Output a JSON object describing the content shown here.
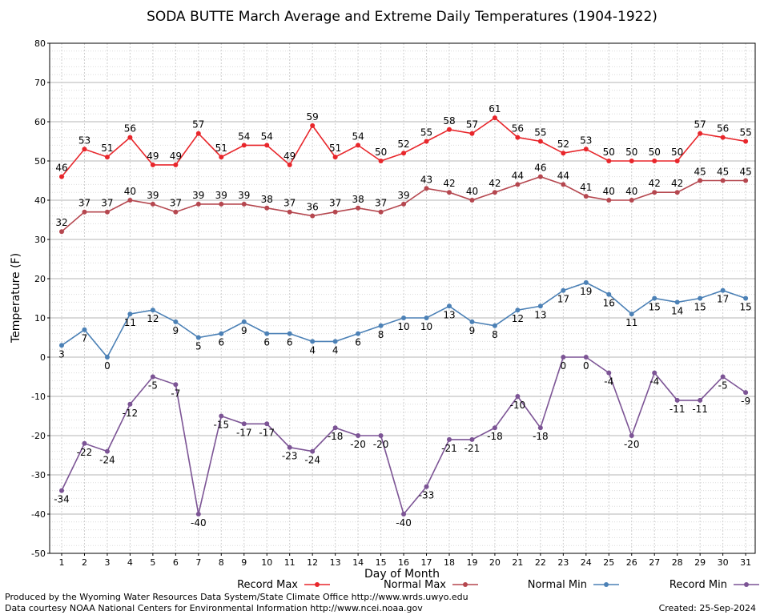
{
  "chart_data": {
    "type": "line",
    "title": "SODA BUTTE March Average and Extreme Daily Temperatures (1904-1922)",
    "xlabel": "Day of Month",
    "ylabel": "Temperature (F)",
    "ylim": [
      -50,
      80
    ],
    "yticks": [
      -50,
      -40,
      -30,
      -20,
      -10,
      0,
      10,
      20,
      30,
      40,
      50,
      60,
      70,
      80
    ],
    "x": [
      1,
      2,
      3,
      4,
      5,
      6,
      7,
      8,
      9,
      10,
      11,
      12,
      13,
      14,
      15,
      16,
      17,
      18,
      19,
      20,
      21,
      22,
      23,
      24,
      25,
      26,
      27,
      28,
      29,
      30,
      31
    ],
    "grid": true,
    "legend_placement": "bottom",
    "series": [
      {
        "name": "Record Max",
        "color": "#e8262b",
        "label_position": "above",
        "values": [
          46,
          53,
          51,
          56,
          49,
          49,
          57,
          51,
          54,
          54,
          49,
          59,
          51,
          54,
          50,
          52,
          55,
          58,
          57,
          61,
          56,
          55,
          52,
          53,
          50,
          50,
          50,
          50,
          57,
          56,
          55
        ]
      },
      {
        "name": "Normal Max",
        "color": "#b5474f",
        "label_position": "above",
        "values": [
          32,
          37,
          37,
          40,
          39,
          37,
          39,
          39,
          39,
          38,
          37,
          36,
          37,
          38,
          37,
          39,
          43,
          42,
          40,
          42,
          44,
          46,
          44,
          41,
          40,
          40,
          42,
          42,
          45,
          45,
          45
        ]
      },
      {
        "name": "Normal Min",
        "color": "#4c81b6",
        "label_position": "below",
        "values": [
          3,
          7,
          0,
          11,
          12,
          9,
          5,
          6,
          9,
          6,
          6,
          4,
          4,
          6,
          8,
          10,
          10,
          13,
          9,
          8,
          12,
          13,
          17,
          19,
          16,
          11,
          15,
          14,
          15,
          17,
          15
        ]
      },
      {
        "name": "Record Min",
        "color": "#7c5495",
        "label_position": "below",
        "values": [
          -34,
          -22,
          -24,
          -12,
          -5,
          -7,
          -40,
          -15,
          -17,
          -17,
          -23,
          -24,
          -18,
          -20,
          -20,
          -40,
          -33,
          -21,
          -21,
          -18,
          -10,
          -18,
          0,
          0,
          -4,
          -20,
          -4,
          -11,
          -11,
          -5,
          -9
        ]
      }
    ]
  },
  "footer": {
    "line1": "Produced by the Wyoming Water Resources Data System/State Climate Office http://www.wrds.uwyo.edu",
    "line2": "Data courtesy NOAA National Centers for Environmental Information http://www.ncei.noaa.gov",
    "created": "Created:  25-Sep-2024"
  }
}
